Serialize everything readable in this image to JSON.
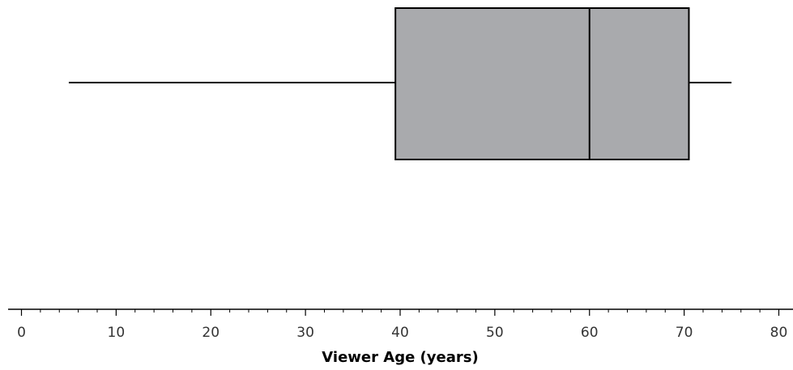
{
  "chart_data": {
    "type": "boxplot",
    "orientation": "horizontal",
    "xlabel": "Viewer Age (years)",
    "xlim": [
      0,
      80
    ],
    "major_ticks": [
      0,
      10,
      20,
      30,
      40,
      50,
      60,
      70,
      80
    ],
    "major_tick_labels": [
      "0",
      "10",
      "20",
      "30",
      "40",
      "50",
      "60",
      "70",
      "80"
    ],
    "minor_tick_step": 2,
    "grid": false,
    "legend": "none",
    "box": {
      "min": 5,
      "q1": 39.5,
      "median": 60,
      "q3": 70.5,
      "max": 75
    },
    "colors": {
      "box_fill": "#a9aaad",
      "stroke": "#000000",
      "text": "#333333"
    }
  }
}
